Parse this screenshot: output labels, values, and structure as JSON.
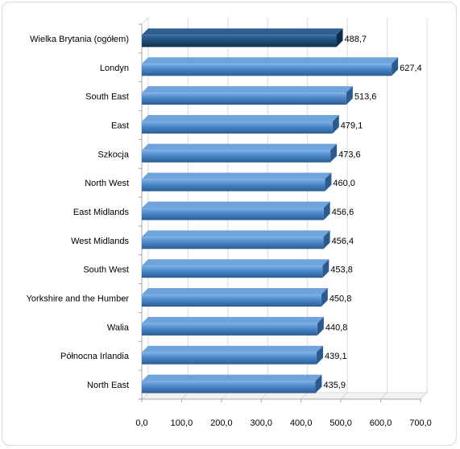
{
  "chart_data": {
    "type": "bar",
    "orientation": "horizontal",
    "categories": [
      "Wielka Brytania (ogółem)",
      "Londyn",
      "South East",
      "East",
      "Szkocja",
      "North West",
      "East Midlands",
      "West Midlands",
      "South West",
      "Yorkshire and the Humber",
      "Walia",
      "Północna Irlandia",
      "North East"
    ],
    "values": [
      488.7,
      627.4,
      513.6,
      479.1,
      473.6,
      460.0,
      456.6,
      456.4,
      453.8,
      450.8,
      440.8,
      439.1,
      435.9
    ],
    "value_labels": [
      "488,7",
      "627,4",
      "513,6",
      "479,1",
      "473,6",
      "460,0",
      "456,6",
      "456,4",
      "453,8",
      "450,8",
      "440,8",
      "439,1",
      "435,9"
    ],
    "xlim": [
      0,
      700
    ],
    "xticks": [
      "0,0",
      "100,0",
      "200,0",
      "300,0",
      "400,0",
      "500,0",
      "600,0",
      "700,0"
    ],
    "grid": true,
    "legend": "none",
    "colors": {
      "highlight": "#1f4e79",
      "bar": "#4a86c8",
      "bar_light": "#7fb0e6",
      "bar_dark": "#2c5d91",
      "grid": "#d9d9d9",
      "axis": "#a6a6a6"
    }
  }
}
